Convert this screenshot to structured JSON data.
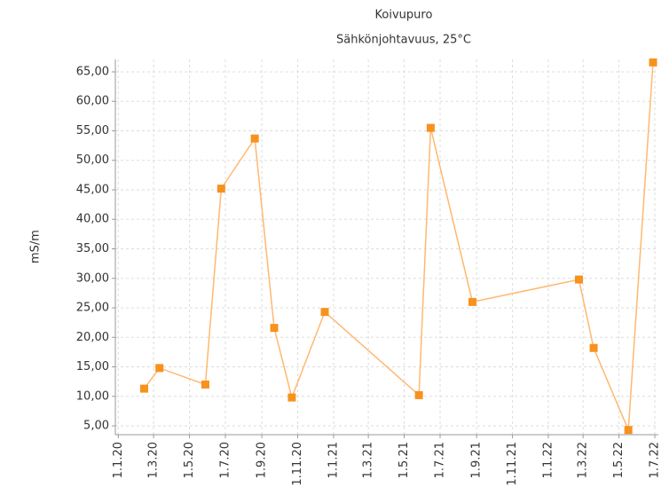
{
  "chart_data": {
    "type": "line",
    "title": "Koivupuro",
    "subtitle": "Sähkönjohtavuus, 25°C",
    "y_label": "mS/m",
    "x": [
      "2020-02-14",
      "2020-03-11",
      "2020-05-28",
      "2020-06-24",
      "2020-08-20",
      "2020-09-22",
      "2020-10-22",
      "2020-12-17",
      "2021-05-26",
      "2021-06-15",
      "2021-08-25",
      "2022-02-22",
      "2022-03-19",
      "2022-05-17",
      "2022-06-28"
    ],
    "series": [
      {
        "name": "Sähkönjohtavuus, 25°C",
        "color": "#f7921e",
        "line_color": "#ffb870",
        "values": [
          11.3,
          14.8,
          12.0,
          45.2,
          53.7,
          21.6,
          9.8,
          24.3,
          10.2,
          55.5,
          26.0,
          29.8,
          18.2,
          4.3,
          66.6
        ]
      }
    ],
    "xlim": [
      "2019-12-27",
      "2022-07-07"
    ],
    "xticks": [
      {
        "value": "2020-01-01",
        "label": "1.1.20"
      },
      {
        "value": "2020-03-01",
        "label": "1.3.20"
      },
      {
        "value": "2020-05-01",
        "label": "1.5.20"
      },
      {
        "value": "2020-07-01",
        "label": "1.7.20"
      },
      {
        "value": "2020-09-01",
        "label": "1.9.20"
      },
      {
        "value": "2020-11-01",
        "label": "1.11.20"
      },
      {
        "value": "2021-01-01",
        "label": "1.1.21"
      },
      {
        "value": "2021-03-01",
        "label": "1.3.21"
      },
      {
        "value": "2021-05-01",
        "label": "1.5.21"
      },
      {
        "value": "2021-07-01",
        "label": "1.7.21"
      },
      {
        "value": "2021-09-01",
        "label": "1.9.21"
      },
      {
        "value": "2021-11-01",
        "label": "1.11.21"
      },
      {
        "value": "2022-01-01",
        "label": "1.1.22"
      },
      {
        "value": "2022-03-01",
        "label": "1.3.22"
      },
      {
        "value": "2022-05-01",
        "label": "1.5.22"
      },
      {
        "value": "2022-07-01",
        "label": "1.7.22"
      }
    ],
    "ylim": [
      3.5,
      67.1
    ],
    "yticks": [
      {
        "value": 5,
        "label": "5,00"
      },
      {
        "value": 10,
        "label": "10,00"
      },
      {
        "value": 15,
        "label": "15,00"
      },
      {
        "value": 20,
        "label": "20,00"
      },
      {
        "value": 25,
        "label": "25,00"
      },
      {
        "value": 30,
        "label": "30,00"
      },
      {
        "value": 35,
        "label": "35,00"
      },
      {
        "value": 40,
        "label": "40,00"
      },
      {
        "value": 45,
        "label": "45,00"
      },
      {
        "value": 50,
        "label": "50,00"
      },
      {
        "value": 55,
        "label": "55,00"
      },
      {
        "value": 60,
        "label": "60,00"
      },
      {
        "value": 65,
        "label": "65,00"
      }
    ],
    "grid": true
  }
}
